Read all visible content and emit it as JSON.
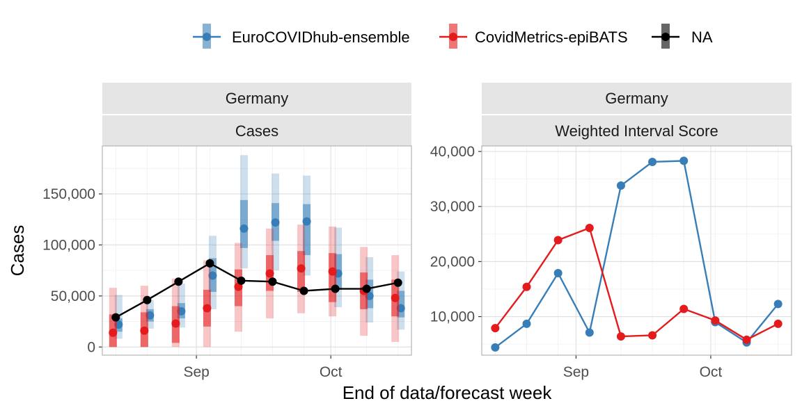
{
  "legend": {
    "items": [
      {
        "label": "EuroCOVIDhub-ensemble",
        "color": "#377eb8"
      },
      {
        "label": "CovidMetrics-epiBATS",
        "color": "#e41a1c"
      },
      {
        "label": "NA",
        "color": "#000000"
      }
    ]
  },
  "xlabel": "End of data/forecast week",
  "chart_data": [
    {
      "type": "line",
      "facet_top": "Germany",
      "facet_bottom": "Cases",
      "ylabel": "Cases",
      "xlabel": "End of data/forecast week",
      "x_ticks": [
        "Sep",
        "Oct"
      ],
      "y_ticks": [
        "0",
        "50,000",
        "100,000",
        "150,000"
      ],
      "ylim": [
        -8000,
        197000
      ],
      "series": [
        {
          "name": "EuroCOVIDhub-ensemble",
          "color": "#377eb8",
          "x": [
            "2021-08-14",
            "2021-08-21",
            "2021-08-28",
            "2021-09-04",
            "2021-09-11",
            "2021-09-18",
            "2021-09-25",
            "2021-10-02",
            "2021-10-09",
            "2021-10-16"
          ],
          "values": [
            22000,
            31000,
            35000,
            70000,
            116000,
            122000,
            123000,
            72000,
            50000,
            38000
          ],
          "q50": [
            [
              15000,
              28000
            ],
            [
              25000,
              37000
            ],
            [
              28000,
              43000
            ],
            [
              54000,
              87000
            ],
            [
              97000,
              144000
            ],
            [
              104000,
              141000
            ],
            [
              90000,
              140000
            ],
            [
              56000,
              91000
            ],
            [
              38000,
              66000
            ],
            [
              29000,
              55000
            ]
          ],
          "q90": [
            [
              8000,
              51000
            ],
            [
              18000,
              46000
            ],
            [
              19000,
              62000
            ],
            [
              37000,
              109000
            ],
            [
              77000,
              188000
            ],
            [
              75000,
              170000
            ],
            [
              70000,
              168000
            ],
            [
              39000,
              117000
            ],
            [
              24000,
              88000
            ],
            [
              17000,
              74000
            ]
          ]
        },
        {
          "name": "CovidMetrics-epiBATS",
          "color": "#e41a1c",
          "x": [
            "2021-08-14",
            "2021-08-21",
            "2021-08-28",
            "2021-09-04",
            "2021-09-11",
            "2021-09-18",
            "2021-09-25",
            "2021-10-02",
            "2021-10-09",
            "2021-10-16"
          ],
          "values": [
            14000,
            16000,
            23000,
            38000,
            59000,
            72000,
            77000,
            74000,
            55000,
            48000
          ],
          "q50": [
            [
              0,
              32000
            ],
            [
              0,
              34000
            ],
            [
              4000,
              40000
            ],
            [
              20000,
              56000
            ],
            [
              40000,
              76000
            ],
            [
              55000,
              90000
            ],
            [
              54000,
              94000
            ],
            [
              44000,
              92000
            ],
            [
              37000,
              73000
            ],
            [
              30000,
              66000
            ]
          ],
          "q90": [
            [
              0,
              58000
            ],
            [
              0,
              60000
            ],
            [
              0,
              67000
            ],
            [
              0,
              85000
            ],
            [
              15000,
              102000
            ],
            [
              28000,
              116000
            ],
            [
              33000,
              120000
            ],
            [
              30000,
              118000
            ],
            [
              11000,
              98000
            ],
            [
              5000,
              90000
            ]
          ]
        },
        {
          "name": "NA",
          "color": "#000000",
          "x": [
            "2021-08-14",
            "2021-08-21",
            "2021-08-28",
            "2021-09-04",
            "2021-09-11",
            "2021-09-18",
            "2021-09-25",
            "2021-10-02",
            "2021-10-09",
            "2021-10-16"
          ],
          "values": [
            29000,
            46000,
            64000,
            82000,
            65000,
            64000,
            55000,
            57000,
            57000,
            63000
          ]
        }
      ]
    },
    {
      "type": "line",
      "facet_top": "Germany",
      "facet_bottom": "Weighted Interval Score",
      "x_ticks": [
        "Sep",
        "Oct"
      ],
      "y_ticks": [
        "10,000",
        "20,000",
        "30,000",
        "40,000"
      ],
      "ylim": [
        3000,
        41000
      ],
      "series": [
        {
          "name": "EuroCOVIDhub-ensemble",
          "color": "#377eb8",
          "x": [
            "2021-08-14",
            "2021-08-21",
            "2021-08-28",
            "2021-09-04",
            "2021-09-11",
            "2021-09-18",
            "2021-09-25",
            "2021-10-02",
            "2021-10-09",
            "2021-10-16"
          ],
          "values": [
            4400,
            8700,
            17900,
            7100,
            33800,
            38100,
            38300,
            9000,
            5300,
            12300
          ]
        },
        {
          "name": "CovidMetrics-epiBATS",
          "color": "#e41a1c",
          "x": [
            "2021-08-14",
            "2021-08-21",
            "2021-08-28",
            "2021-09-04",
            "2021-09-11",
            "2021-09-18",
            "2021-09-25",
            "2021-10-02",
            "2021-10-09",
            "2021-10-16"
          ],
          "values": [
            7900,
            15400,
            23900,
            26100,
            6400,
            6600,
            11400,
            9300,
            5800,
            8700
          ]
        }
      ]
    }
  ]
}
